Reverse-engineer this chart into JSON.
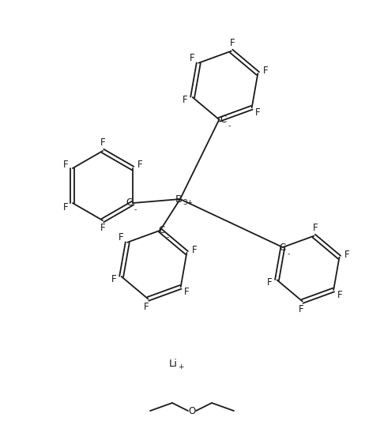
{
  "background_color": "#ffffff",
  "line_color": "#1a1a1a",
  "text_color": "#1a1a1a",
  "figsize": [
    4.86,
    5.62
  ],
  "dpi": 100,
  "lw": 1.3,
  "font_size": 8.5,
  "B_label": "B3+",
  "Li_label": "Li+",
  "C_minus_label": "C-",
  "F_label": "F",
  "O_label": "O",
  "ether_label": "O"
}
